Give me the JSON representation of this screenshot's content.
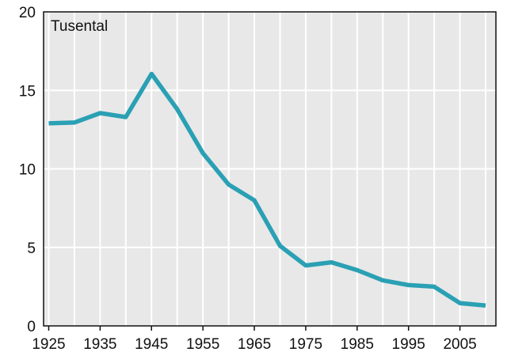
{
  "chart_data": {
    "type": "line",
    "unit_label": "Tusental",
    "x": [
      1925,
      1930,
      1935,
      1940,
      1945,
      1950,
      1955,
      1960,
      1965,
      1970,
      1975,
      1980,
      1985,
      1990,
      1995,
      2000,
      2005,
      2010
    ],
    "series": [
      {
        "values": [
          12.9,
          12.95,
          13.55,
          13.3,
          16.05,
          13.8,
          11.0,
          9.0,
          8.0,
          5.1,
          3.85,
          4.05,
          3.55,
          2.9,
          2.6,
          2.5,
          1.45,
          1.3
        ]
      }
    ],
    "xlim": [
      1924,
      2012
    ],
    "ylim": [
      0,
      20
    ],
    "x_ticks": [
      1925,
      1935,
      1945,
      1955,
      1965,
      1975,
      1985,
      1995,
      2005
    ],
    "x_tick_labels": [
      "1925",
      "1935",
      "1945",
      "1955",
      "1965",
      "1975",
      "1985",
      "1995",
      "2005"
    ],
    "y_ticks": [
      0,
      5,
      10,
      15,
      20
    ],
    "y_tick_labels": [
      "0",
      "5",
      "10",
      "15",
      "20"
    ],
    "grid": true,
    "colors": {
      "line": "#2AA0B4",
      "plot_background": "#E8E8E8",
      "grid": "#FFFFFF",
      "frame": "#111111"
    }
  }
}
